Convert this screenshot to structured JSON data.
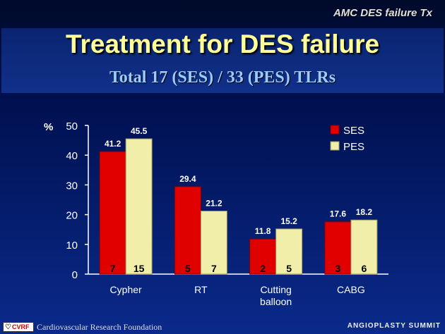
{
  "header": {
    "corner_tag": "AMC DES failure Tx",
    "title": "Treatment for DES failure",
    "subtitle": "Total 17 (SES) / 33 (PES) TLRs"
  },
  "footer": {
    "logo_text": "CVRF",
    "org": "Cardiovascular Research Foundation",
    "summit": "ANGIOPLASTY SUMMIT"
  },
  "colors": {
    "ses": "#e00000",
    "pes": "#f0eea8"
  },
  "chart_data": {
    "type": "bar",
    "ylabel": "%",
    "ylim": [
      0,
      50
    ],
    "yticks": [
      0,
      10,
      20,
      30,
      40,
      50
    ],
    "categories": [
      [
        "Cypher"
      ],
      [
        "RT"
      ],
      [
        "Cutting",
        "balloon"
      ],
      [
        "CABG"
      ]
    ],
    "legend_position": "top-right",
    "series": [
      {
        "name": "SES",
        "values": [
          41.2,
          29.4,
          11.8,
          17.6
        ],
        "counts": [
          7,
          5,
          2,
          3
        ]
      },
      {
        "name": "PES",
        "values": [
          45.5,
          21.2,
          15.2,
          18.2
        ],
        "counts": [
          15,
          7,
          5,
          6
        ]
      }
    ]
  }
}
